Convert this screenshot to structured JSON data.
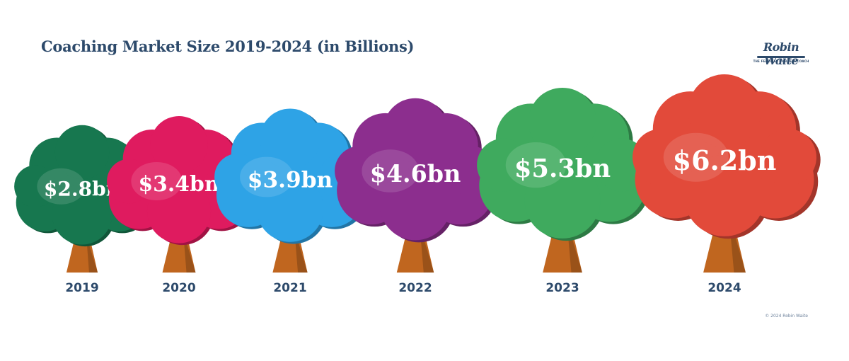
{
  "title": "Coaching Market Size 2019-2024 (in Billions)",
  "logo": {
    "name": "Robin Waite",
    "tagline": "THE FEARLESS BUSINESS COACH"
  },
  "copyright": "© 2024 Robin Waite",
  "chart_data": {
    "type": "bar",
    "title": "Coaching Market Size 2019-2024 (in Billions)",
    "categories": [
      "2019",
      "2020",
      "2021",
      "2022",
      "2023",
      "2024"
    ],
    "values": [
      2.8,
      3.4,
      3.9,
      4.6,
      5.3,
      6.2
    ],
    "value_labels": [
      "$2.8bn",
      "$3.4bn",
      "$3.9bn",
      "$4.6bn",
      "$5.3bn",
      "$6.2bn"
    ],
    "colors": [
      "#17774f",
      "#df1b5f",
      "#2ea3e6",
      "#8c2e8e",
      "#3faa5e",
      "#e24a3a"
    ],
    "trunk_color": "#c0661f",
    "grid": false
  }
}
